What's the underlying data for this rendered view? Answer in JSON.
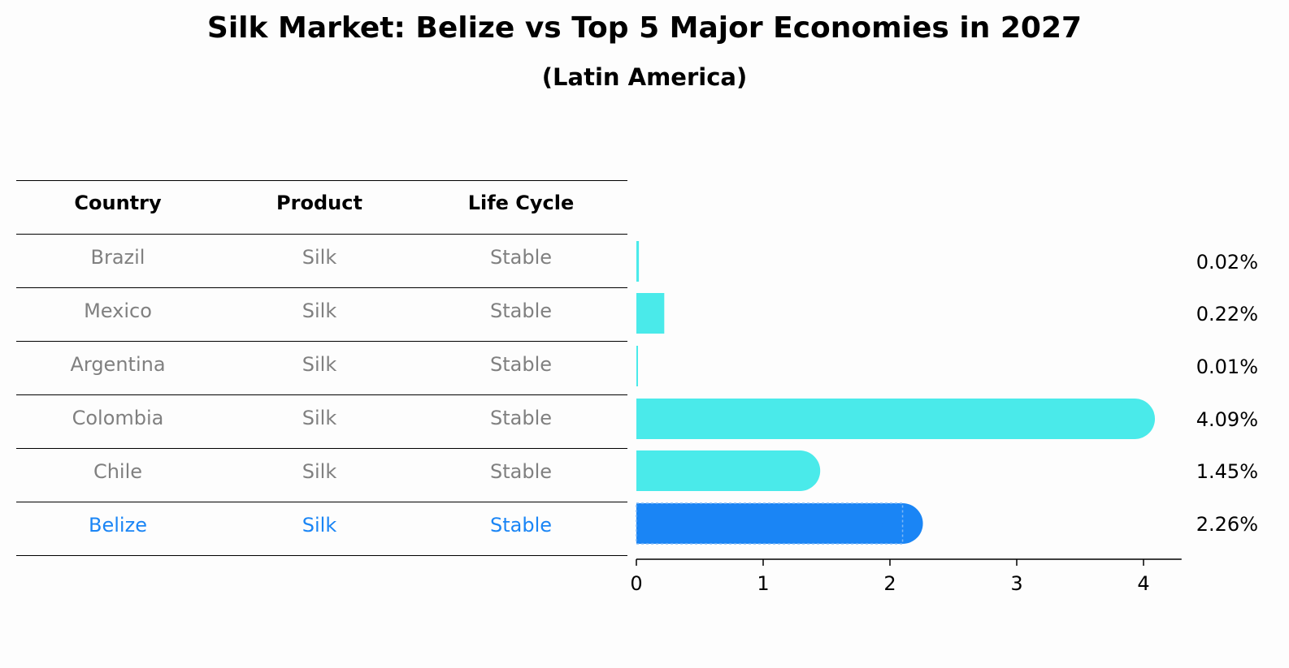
{
  "title": "Silk Market: Belize vs Top 5 Major Economies in 2027",
  "subtitle": "(Latin America)",
  "table": {
    "headers": [
      "Country",
      "Product",
      "Life Cycle"
    ],
    "rows": [
      {
        "country": "Brazil",
        "product": "Silk",
        "life_cycle": "Stable",
        "highlight": false
      },
      {
        "country": "Mexico",
        "product": "Silk",
        "life_cycle": "Stable",
        "highlight": false
      },
      {
        "country": "Argentina",
        "product": "Silk",
        "life_cycle": "Stable",
        "highlight": false
      },
      {
        "country": "Colombia",
        "product": "Silk",
        "life_cycle": "Stable",
        "highlight": false
      },
      {
        "country": "Chile",
        "product": "Silk",
        "life_cycle": "Stable",
        "highlight": false
      },
      {
        "country": "Belize",
        "product": "Silk",
        "life_cycle": "Stable",
        "highlight": true
      }
    ]
  },
  "colors": {
    "normal_bar": "#4aeaea",
    "highlight_bar": "#1a85f5",
    "normal_text": "#808080",
    "highlight_text": "#1a85f5"
  },
  "chart_data": {
    "type": "bar",
    "orientation": "horizontal",
    "categories": [
      "Brazil",
      "Mexico",
      "Argentina",
      "Colombia",
      "Chile",
      "Belize"
    ],
    "values": [
      0.02,
      0.22,
      0.01,
      4.09,
      1.45,
      2.26
    ],
    "value_labels": [
      "0.02%",
      "0.22%",
      "0.01%",
      "4.09%",
      "1.45%",
      "2.26%"
    ],
    "xlim": [
      0,
      4.3
    ],
    "xticks": [
      0,
      1,
      2,
      3,
      4
    ],
    "highlight": "Belize"
  }
}
